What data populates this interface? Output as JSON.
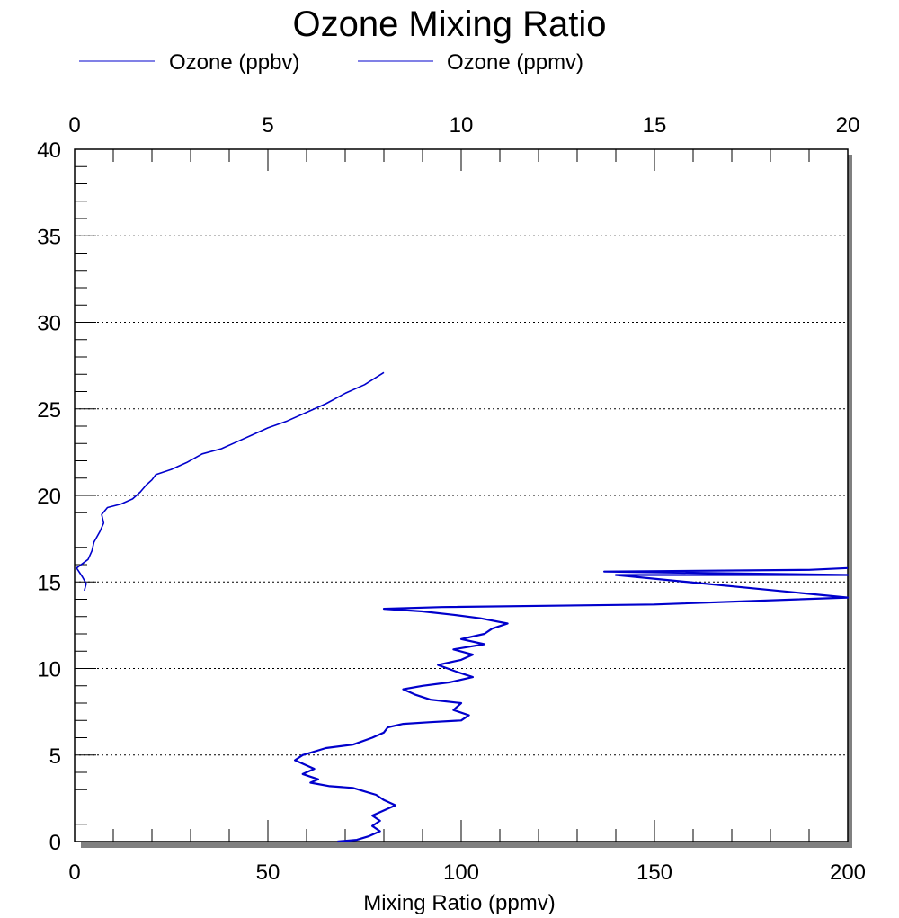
{
  "chart_data": {
    "type": "line",
    "title": "Ozone Mixing Ratio",
    "xlabel": "Mixing Ratio (ppmv)",
    "ylabel": "",
    "bottom_axis": {
      "range": [
        0,
        200
      ],
      "ticks": [
        "0",
        "50",
        "100",
        "150",
        "200"
      ]
    },
    "top_axis": {
      "range": [
        0,
        20
      ],
      "ticks": [
        "0",
        "5",
        "10",
        "15",
        "20"
      ]
    },
    "y_axis": {
      "range": [
        0,
        40
      ],
      "ticks": [
        "0",
        "5",
        "10",
        "15",
        "20",
        "25",
        "30",
        "35",
        "40"
      ]
    },
    "grid": "horizontal dotted",
    "legend_position": "top-left",
    "legend": [
      "Ozone (ppbv)",
      "Ozone (ppmv)"
    ],
    "series": [
      {
        "name": "Ozone (ppbv)",
        "axis": "bottom",
        "color": "#0000cc",
        "points": [
          [
            68,
            0.0
          ],
          [
            73,
            0.1
          ],
          [
            76,
            0.3
          ],
          [
            79,
            0.6
          ],
          [
            77,
            0.9
          ],
          [
            79,
            1.2
          ],
          [
            77,
            1.5
          ],
          [
            80,
            1.8
          ],
          [
            83,
            2.1
          ],
          [
            80,
            2.4
          ],
          [
            78,
            2.7
          ],
          [
            75,
            2.9
          ],
          [
            72,
            3.1
          ],
          [
            66,
            3.2
          ],
          [
            61,
            3.4
          ],
          [
            63,
            3.6
          ],
          [
            59,
            3.9
          ],
          [
            62,
            4.2
          ],
          [
            59,
            4.5
          ],
          [
            57,
            4.7
          ],
          [
            59,
            5.0
          ],
          [
            65,
            5.4
          ],
          [
            72,
            5.6
          ],
          [
            77,
            6.0
          ],
          [
            80,
            6.3
          ],
          [
            81,
            6.6
          ],
          [
            85,
            6.8
          ],
          [
            92,
            6.9
          ],
          [
            100,
            7.0
          ],
          [
            102,
            7.3
          ],
          [
            98,
            7.6
          ],
          [
            100,
            8.0
          ],
          [
            92,
            8.2
          ],
          [
            88,
            8.5
          ],
          [
            85,
            8.8
          ],
          [
            90,
            9.0
          ],
          [
            97,
            9.2
          ],
          [
            103,
            9.5
          ],
          [
            99,
            9.8
          ],
          [
            94,
            10.2
          ],
          [
            100,
            10.5
          ],
          [
            103,
            10.8
          ],
          [
            98,
            11.1
          ],
          [
            106,
            11.4
          ],
          [
            100,
            11.7
          ],
          [
            106,
            12.0
          ],
          [
            108,
            12.3
          ],
          [
            112,
            12.6
          ],
          [
            105,
            12.9
          ],
          [
            98,
            13.1
          ],
          [
            90,
            13.3
          ],
          [
            80,
            13.45
          ],
          [
            95,
            13.55
          ],
          [
            150,
            13.7
          ],
          [
            200,
            14.1
          ],
          [
            140,
            15.4
          ],
          [
            200,
            15.4
          ],
          [
            137,
            15.6
          ],
          [
            190,
            15.7
          ],
          [
            200,
            15.8
          ]
        ]
      },
      {
        "name": "Ozone (ppmv)",
        "axis": "top",
        "color": "#0000cc",
        "points": [
          [
            0.25,
            14.5
          ],
          [
            0.3,
            14.9
          ],
          [
            0.2,
            15.3
          ],
          [
            0.05,
            15.8
          ],
          [
            0.35,
            16.3
          ],
          [
            0.45,
            16.8
          ],
          [
            0.5,
            17.3
          ],
          [
            0.65,
            17.9
          ],
          [
            0.75,
            18.4
          ],
          [
            0.7,
            18.9
          ],
          [
            0.85,
            19.3
          ],
          [
            1.2,
            19.5
          ],
          [
            1.5,
            19.8
          ],
          [
            1.7,
            20.2
          ],
          [
            1.85,
            20.6
          ],
          [
            2.0,
            20.9
          ],
          [
            2.1,
            21.2
          ],
          [
            2.5,
            21.5
          ],
          [
            2.9,
            21.9
          ],
          [
            3.3,
            22.4
          ],
          [
            3.8,
            22.7
          ],
          [
            4.2,
            23.1
          ],
          [
            4.6,
            23.5
          ],
          [
            5.0,
            23.9
          ],
          [
            5.5,
            24.3
          ],
          [
            6.0,
            24.8
          ],
          [
            6.5,
            25.3
          ],
          [
            7.0,
            25.9
          ],
          [
            7.5,
            26.4
          ],
          [
            8.0,
            27.1
          ]
        ]
      }
    ]
  }
}
